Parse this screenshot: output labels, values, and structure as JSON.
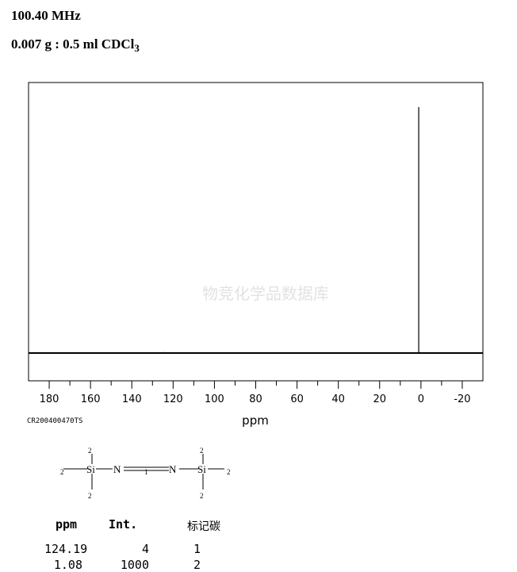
{
  "header": {
    "frequency": "100.40 MHz",
    "sample": "0.007 g : 0.5 ml CDCl",
    "sample_sub": "3"
  },
  "code": "CR200400470TS",
  "watermark": "物竞化学品数据库",
  "chart_data": {
    "type": "line",
    "title": "",
    "xlabel": "ppm",
    "xlim": [
      190,
      -30
    ],
    "x_ticks": [
      180,
      160,
      140,
      120,
      100,
      80,
      60,
      40,
      20,
      0,
      -20
    ],
    "x_tick_labels": [
      "180",
      "160",
      "140",
      "120",
      "100",
      "80",
      "60",
      "40",
      "20",
      "0",
      "-20"
    ],
    "peaks": [
      {
        "ppm": 124.19,
        "intensity": 4
      },
      {
        "ppm": 1.08,
        "intensity": 1000
      }
    ],
    "grid": false
  },
  "structure": {
    "atoms": [
      "Si",
      "N",
      "N",
      "Si"
    ],
    "labels": {
      "methyl": "2",
      "azo": "1"
    }
  },
  "table": {
    "headers": [
      "ppm",
      "Int.",
      "标记碳"
    ],
    "rows": [
      [
        "124.19",
        "4",
        "1"
      ],
      [
        "1.08",
        "1000",
        "2"
      ]
    ]
  }
}
